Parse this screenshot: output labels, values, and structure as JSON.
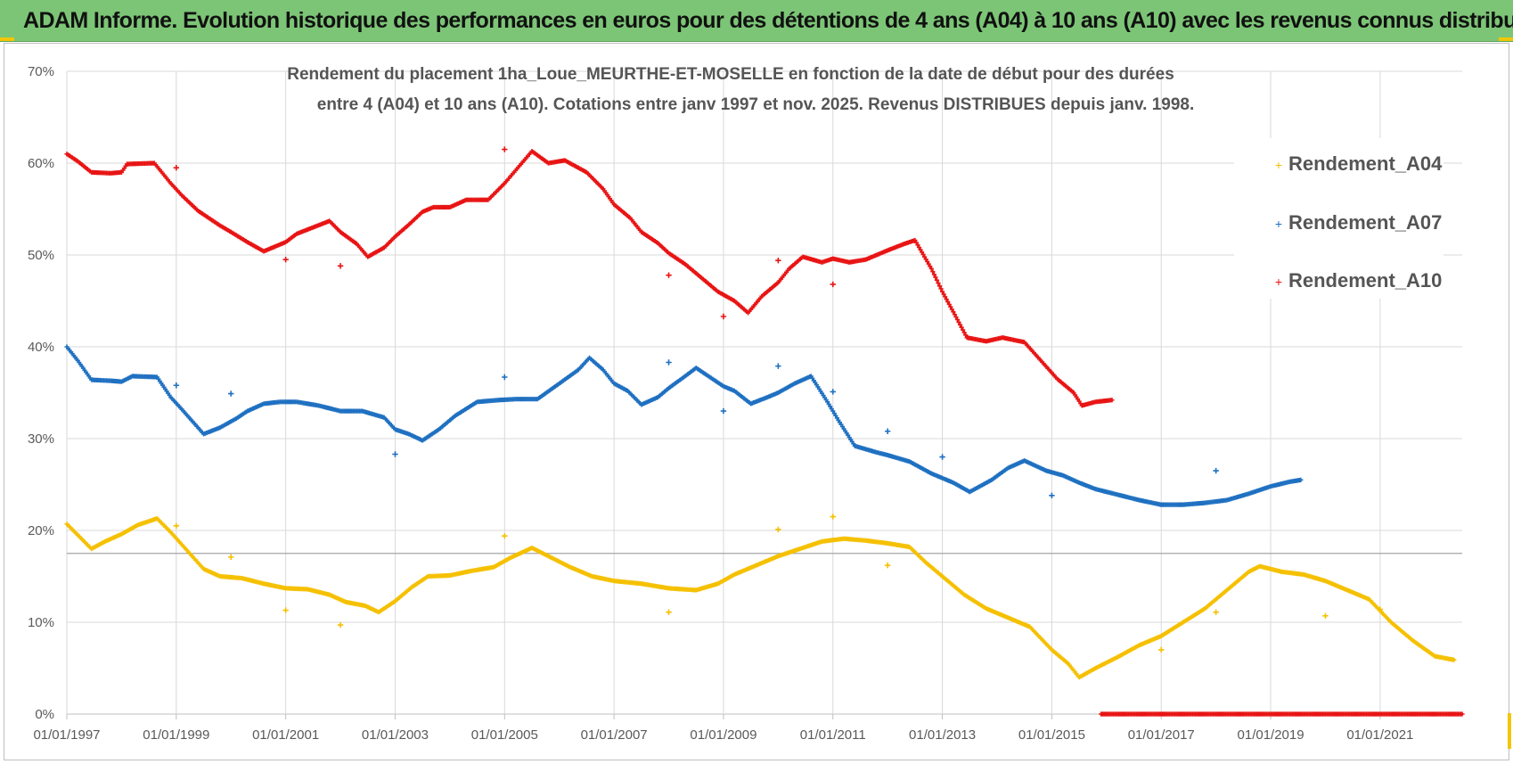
{
  "header": {
    "title": "ADAM Informe. Evolution historique des performances en euros pour des détentions de 4 ans (A04) à 10 ans (A10) avec les revenus connus distribués"
  },
  "colors": {
    "A04": "#f5c000",
    "A07": "#1f70c1",
    "A10": "#e81414",
    "banner": "#7cc576",
    "grid": "#d9d9d9"
  },
  "chart_data": {
    "type": "scatter",
    "title_lines": [
      "Rendement du placement 1ha_Loue_MEURTHE-ET-MOSELLE en fonction de la date de début pour des durées",
      "entre 4 (A04) et 10 ans (A10).  Cotations entre janv 1997 et nov. 2025. Revenus DISTRIBUES depuis janv. 1998."
    ],
    "xlim": [
      1997.0,
      2022.5
    ],
    "ylim": [
      0,
      70
    ],
    "y_ticks": [
      0,
      10,
      20,
      30,
      40,
      50,
      60,
      70
    ],
    "y_tick_labels": [
      "0%",
      "10%",
      "20%",
      "30%",
      "40%",
      "50%",
      "60%",
      "70%"
    ],
    "x_ticks": [
      1997,
      1999,
      2001,
      2003,
      2005,
      2007,
      2009,
      2011,
      2013,
      2015,
      2017,
      2019,
      2021
    ],
    "x_tick_labels": [
      "01/01/1997",
      "01/01/1999",
      "01/01/2001",
      "01/01/2003",
      "01/01/2005",
      "01/01/2007",
      "01/01/2009",
      "01/01/2011",
      "01/01/2013",
      "01/01/2015",
      "01/01/2017",
      "01/01/2019",
      "01/01/2021"
    ],
    "reference_line_y": 17.5,
    "legend_position": "right",
    "series": [
      {
        "name": "Rendement_A04",
        "color": "#f5c000",
        "points": [
          [
            1997.0,
            20.7
          ],
          [
            1997.25,
            19.2
          ],
          [
            1997.45,
            18.0
          ],
          [
            1997.7,
            18.8
          ],
          [
            1998.0,
            19.6
          ],
          [
            1998.3,
            20.6
          ],
          [
            1998.65,
            21.3
          ],
          [
            1998.9,
            19.8
          ],
          [
            1999.2,
            17.8
          ],
          [
            1999.5,
            15.8
          ],
          [
            1999.8,
            15.0
          ],
          [
            2000.2,
            14.8
          ],
          [
            2000.6,
            14.2
          ],
          [
            2001.0,
            13.7
          ],
          [
            2001.4,
            13.6
          ],
          [
            2001.8,
            13.0
          ],
          [
            2002.1,
            12.2
          ],
          [
            2002.45,
            11.8
          ],
          [
            2002.7,
            11.1
          ],
          [
            2003.0,
            12.3
          ],
          [
            2003.3,
            13.8
          ],
          [
            2003.6,
            15.0
          ],
          [
            2004.0,
            15.1
          ],
          [
            2004.4,
            15.6
          ],
          [
            2004.8,
            16.0
          ],
          [
            2005.1,
            17.0
          ],
          [
            2005.5,
            18.1
          ],
          [
            2005.8,
            17.2
          ],
          [
            2006.2,
            16.0
          ],
          [
            2006.6,
            15.0
          ],
          [
            2007.0,
            14.5
          ],
          [
            2007.5,
            14.2
          ],
          [
            2008.0,
            13.7
          ],
          [
            2008.5,
            13.5
          ],
          [
            2008.9,
            14.2
          ],
          [
            2009.2,
            15.2
          ],
          [
            2009.6,
            16.2
          ],
          [
            2010.0,
            17.2
          ],
          [
            2010.4,
            18.0
          ],
          [
            2010.8,
            18.8
          ],
          [
            2011.2,
            19.1
          ],
          [
            2011.6,
            18.9
          ],
          [
            2012.0,
            18.6
          ],
          [
            2012.4,
            18.2
          ],
          [
            2012.7,
            16.5
          ],
          [
            2013.0,
            15.0
          ],
          [
            2013.4,
            13.0
          ],
          [
            2013.8,
            11.5
          ],
          [
            2014.2,
            10.5
          ],
          [
            2014.6,
            9.5
          ],
          [
            2015.0,
            7.0
          ],
          [
            2015.3,
            5.5
          ],
          [
            2015.5,
            4.0
          ],
          [
            2015.8,
            5.0
          ],
          [
            2016.2,
            6.2
          ],
          [
            2016.6,
            7.5
          ],
          [
            2017.0,
            8.5
          ],
          [
            2017.4,
            10.0
          ],
          [
            2017.8,
            11.5
          ],
          [
            2018.2,
            13.5
          ],
          [
            2018.6,
            15.5
          ],
          [
            2018.8,
            16.1
          ],
          [
            2019.2,
            15.5
          ],
          [
            2019.6,
            15.2
          ],
          [
            2020.0,
            14.5
          ],
          [
            2020.4,
            13.5
          ],
          [
            2020.8,
            12.5
          ],
          [
            2021.2,
            10.0
          ],
          [
            2021.6,
            8.0
          ],
          [
            2022.0,
            6.3
          ],
          [
            2022.35,
            5.9
          ]
        ],
        "outliers": [
          [
            1999.0,
            20.5
          ],
          [
            2000.0,
            17.1
          ],
          [
            2001.0,
            11.3
          ],
          [
            2002.0,
            9.7
          ],
          [
            2005.0,
            19.4
          ],
          [
            2008.0,
            11.1
          ],
          [
            2010.0,
            20.1
          ],
          [
            2011.0,
            21.5
          ],
          [
            2012.0,
            16.2
          ],
          [
            2017.0,
            7.0
          ],
          [
            2018.0,
            11.1
          ],
          [
            2020.0,
            10.7
          ],
          [
            2021.0,
            11.4
          ]
        ]
      },
      {
        "name": "Rendement_A07",
        "color": "#1f70c1",
        "points": [
          [
            1997.0,
            40.0
          ],
          [
            1997.2,
            38.5
          ],
          [
            1997.45,
            36.4
          ],
          [
            1997.8,
            36.3
          ],
          [
            1998.0,
            36.2
          ],
          [
            1998.2,
            36.8
          ],
          [
            1998.65,
            36.7
          ],
          [
            1998.9,
            34.5
          ],
          [
            1999.1,
            33.2
          ],
          [
            1999.5,
            30.5
          ],
          [
            1999.8,
            31.2
          ],
          [
            2000.1,
            32.2
          ],
          [
            2000.3,
            33.0
          ],
          [
            2000.6,
            33.8
          ],
          [
            2000.9,
            34.0
          ],
          [
            2001.2,
            34.0
          ],
          [
            2001.6,
            33.6
          ],
          [
            2002.0,
            33.0
          ],
          [
            2002.4,
            33.0
          ],
          [
            2002.8,
            32.3
          ],
          [
            2003.0,
            31.0
          ],
          [
            2003.25,
            30.5
          ],
          [
            2003.5,
            29.8
          ],
          [
            2003.8,
            31.0
          ],
          [
            2004.1,
            32.5
          ],
          [
            2004.5,
            34.0
          ],
          [
            2004.9,
            34.2
          ],
          [
            2005.2,
            34.3
          ],
          [
            2005.6,
            34.3
          ],
          [
            2006.0,
            36.0
          ],
          [
            2006.35,
            37.5
          ],
          [
            2006.55,
            38.8
          ],
          [
            2006.8,
            37.5
          ],
          [
            2007.0,
            36.0
          ],
          [
            2007.25,
            35.2
          ],
          [
            2007.5,
            33.7
          ],
          [
            2007.8,
            34.5
          ],
          [
            2008.0,
            35.5
          ],
          [
            2008.3,
            36.8
          ],
          [
            2008.5,
            37.7
          ],
          [
            2008.8,
            36.5
          ],
          [
            2009.0,
            35.7
          ],
          [
            2009.2,
            35.2
          ],
          [
            2009.5,
            33.8
          ],
          [
            2009.8,
            34.5
          ],
          [
            2010.0,
            35.0
          ],
          [
            2010.3,
            36.0
          ],
          [
            2010.6,
            36.8
          ],
          [
            2010.9,
            34.0
          ],
          [
            2011.1,
            32.0
          ],
          [
            2011.4,
            29.2
          ],
          [
            2011.8,
            28.5
          ],
          [
            2012.0,
            28.2
          ],
          [
            2012.4,
            27.5
          ],
          [
            2012.8,
            26.2
          ],
          [
            2013.2,
            25.2
          ],
          [
            2013.5,
            24.2
          ],
          [
            2013.9,
            25.5
          ],
          [
            2014.2,
            26.8
          ],
          [
            2014.5,
            27.6
          ],
          [
            2014.9,
            26.5
          ],
          [
            2015.2,
            26.0
          ],
          [
            2015.5,
            25.2
          ],
          [
            2015.8,
            24.5
          ],
          [
            2016.2,
            23.9
          ],
          [
            2016.6,
            23.3
          ],
          [
            2017.0,
            22.8
          ],
          [
            2017.4,
            22.8
          ],
          [
            2017.8,
            23.0
          ],
          [
            2018.2,
            23.3
          ],
          [
            2018.6,
            24.0
          ],
          [
            2019.0,
            24.8
          ],
          [
            2019.35,
            25.3
          ],
          [
            2019.55,
            25.5
          ]
        ],
        "outliers": [
          [
            1999.0,
            35.8
          ],
          [
            2000.0,
            34.9
          ],
          [
            2003.0,
            28.3
          ],
          [
            2005.0,
            36.7
          ],
          [
            2008.0,
            38.3
          ],
          [
            2009.0,
            33.0
          ],
          [
            2010.0,
            37.9
          ],
          [
            2011.0,
            35.1
          ],
          [
            2012.0,
            30.8
          ],
          [
            2013.0,
            28.0
          ],
          [
            2015.0,
            23.8
          ],
          [
            2018.0,
            26.5
          ]
        ]
      },
      {
        "name": "Rendement_A10",
        "color": "#e81414",
        "points": [
          [
            1997.0,
            61.0
          ],
          [
            1997.2,
            60.2
          ],
          [
            1997.45,
            59.0
          ],
          [
            1997.8,
            58.9
          ],
          [
            1998.0,
            59.0
          ],
          [
            1998.1,
            59.9
          ],
          [
            1998.6,
            60.0
          ],
          [
            1998.9,
            57.8
          ],
          [
            1999.1,
            56.5
          ],
          [
            1999.4,
            54.8
          ],
          [
            1999.8,
            53.2
          ],
          [
            2000.0,
            52.5
          ],
          [
            2000.3,
            51.4
          ],
          [
            2000.6,
            50.4
          ],
          [
            2001.0,
            51.4
          ],
          [
            2001.2,
            52.3
          ],
          [
            2001.5,
            53.0
          ],
          [
            2001.8,
            53.7
          ],
          [
            2002.0,
            52.5
          ],
          [
            2002.3,
            51.2
          ],
          [
            2002.5,
            49.8
          ],
          [
            2002.8,
            50.8
          ],
          [
            2003.0,
            52.0
          ],
          [
            2003.25,
            53.3
          ],
          [
            2003.5,
            54.7
          ],
          [
            2003.7,
            55.2
          ],
          [
            2004.0,
            55.2
          ],
          [
            2004.3,
            56.0
          ],
          [
            2004.7,
            56.0
          ],
          [
            2005.0,
            57.8
          ],
          [
            2005.2,
            59.2
          ],
          [
            2005.5,
            61.3
          ],
          [
            2005.8,
            60.0
          ],
          [
            2006.1,
            60.3
          ],
          [
            2006.5,
            59.0
          ],
          [
            2006.8,
            57.2
          ],
          [
            2007.0,
            55.5
          ],
          [
            2007.3,
            54.0
          ],
          [
            2007.5,
            52.5
          ],
          [
            2007.8,
            51.3
          ],
          [
            2008.0,
            50.2
          ],
          [
            2008.3,
            49.0
          ],
          [
            2008.6,
            47.5
          ],
          [
            2008.9,
            46.0
          ],
          [
            2009.2,
            45.0
          ],
          [
            2009.45,
            43.7
          ],
          [
            2009.7,
            45.5
          ],
          [
            2010.0,
            47.0
          ],
          [
            2010.2,
            48.5
          ],
          [
            2010.45,
            49.8
          ],
          [
            2010.8,
            49.2
          ],
          [
            2011.0,
            49.6
          ],
          [
            2011.3,
            49.2
          ],
          [
            2011.6,
            49.5
          ],
          [
            2012.0,
            50.5
          ],
          [
            2012.3,
            51.2
          ],
          [
            2012.5,
            51.6
          ],
          [
            2012.8,
            48.5
          ],
          [
            2013.0,
            46.0
          ],
          [
            2013.2,
            43.8
          ],
          [
            2013.45,
            41.0
          ],
          [
            2013.8,
            40.6
          ],
          [
            2014.1,
            41.0
          ],
          [
            2014.5,
            40.5
          ],
          [
            2014.8,
            38.5
          ],
          [
            2015.1,
            36.5
          ],
          [
            2015.4,
            35.0
          ],
          [
            2015.55,
            33.6
          ],
          [
            2015.8,
            34.0
          ],
          [
            2016.1,
            34.2
          ]
        ],
        "outliers": [
          [
            1999.0,
            59.5
          ],
          [
            2001.0,
            49.5
          ],
          [
            2002.0,
            48.8
          ],
          [
            2005.0,
            61.5
          ],
          [
            2008.0,
            47.8
          ],
          [
            2009.0,
            43.3
          ],
          [
            2010.0,
            49.4
          ],
          [
            2011.0,
            46.8
          ]
        ],
        "zero_range": [
          2015.9,
          2022.5
        ]
      }
    ]
  }
}
